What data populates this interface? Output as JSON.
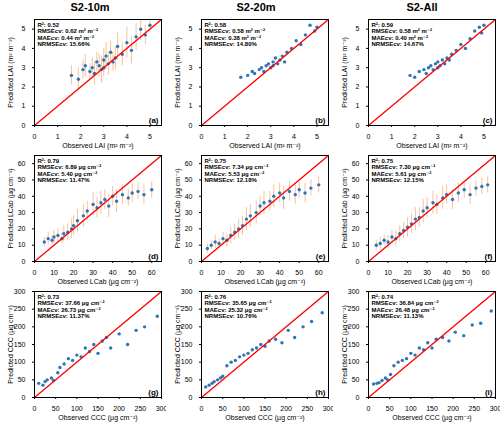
{
  "column_titles": [
    "S2-10m",
    "S2-20m",
    "S2-All"
  ],
  "chart_data": [
    {
      "type": "scatter",
      "title": "(a)",
      "annotations": [
        "R²: 0.52",
        "RMSEcv: 0.62 m² m⁻²",
        "MAEcv: 0.44 m² m⁻²",
        "NRMSEcv: 15.66%"
      ],
      "x_label": "Observed LAI (m² m⁻²)",
      "y_label": "Predicted LAI (m² m⁻²)",
      "xlim": [
        0,
        5.5
      ],
      "ylim": [
        0,
        5.5
      ],
      "xticks": [
        0,
        1,
        2,
        3,
        4,
        5
      ],
      "yticks": [
        0,
        1,
        2,
        3,
        4,
        5
      ],
      "series": [
        {
          "type": "scatter",
          "color": "#2e75b6",
          "error_color": "#f4b183",
          "x": [
            1.6,
            1.9,
            2.1,
            2.2,
            2.4,
            2.5,
            2.6,
            2.7,
            2.8,
            2.9,
            3.0,
            3.0,
            3.1,
            3.2,
            3.3,
            3.4,
            3.5,
            3.6,
            3.8,
            4.0,
            4.2,
            4.4,
            4.6,
            4.8,
            5.0
          ],
          "values": [
            2.6,
            2.4,
            2.9,
            3.1,
            2.8,
            3.0,
            2.7,
            3.3,
            3.1,
            2.9,
            3.4,
            3.0,
            3.6,
            3.2,
            3.8,
            3.3,
            3.5,
            4.1,
            3.7,
            4.3,
            3.9,
            4.6,
            5.0,
            4.7,
            5.2
          ],
          "errors": [
            0.5,
            0.6,
            0.5,
            0.6,
            0.4,
            0.5,
            0.6,
            0.5,
            0.6,
            0.7,
            0.6,
            0.5,
            0.7,
            0.6,
            0.6,
            0.5,
            0.6,
            0.7,
            0.6,
            0.8,
            0.7,
            0.7,
            0.6,
            0.5,
            0.4
          ]
        },
        {
          "type": "line",
          "color": "#ff0000",
          "x": [
            0,
            5.5
          ],
          "values": [
            0,
            5.5
          ]
        }
      ]
    },
    {
      "type": "scatter",
      "title": "(b)",
      "annotations": [
        "R²: 0.58",
        "RMSEcv: 0.58 m² m⁻²",
        "MAEcv: 0.38 m² m⁻²",
        "NRMSEcv: 14.80%"
      ],
      "x_label": "Observed LAI (m² m⁻²)",
      "y_label": "Predicted LAI (m² m⁻²)",
      "xlim": [
        0,
        5.5
      ],
      "ylim": [
        0,
        5.5
      ],
      "xticks": [
        0,
        1,
        2,
        3,
        4,
        5
      ],
      "yticks": [
        0,
        1,
        2,
        3,
        4,
        5
      ],
      "series": [
        {
          "type": "scatter",
          "color": "#2e75b6",
          "x": [
            1.7,
            2.0,
            2.2,
            2.3,
            2.5,
            2.6,
            2.7,
            2.8,
            2.9,
            3.0,
            3.1,
            3.1,
            3.2,
            3.3,
            3.4,
            3.5,
            3.6,
            3.7,
            3.9,
            4.1,
            4.3,
            4.5,
            4.7,
            4.9,
            5.0
          ],
          "values": [
            2.5,
            2.6,
            2.8,
            2.7,
            2.9,
            3.0,
            2.8,
            3.1,
            3.2,
            3.0,
            3.3,
            3.1,
            3.5,
            3.2,
            3.4,
            3.6,
            3.3,
            3.8,
            4.0,
            4.4,
            4.2,
            4.7,
            5.2,
            4.9,
            5.1
          ]
        },
        {
          "type": "line",
          "color": "#ff0000",
          "x": [
            0,
            5.5
          ],
          "values": [
            0,
            5.5
          ]
        }
      ]
    },
    {
      "type": "scatter",
      "title": "(c)",
      "annotations": [
        "R²: 0.59",
        "RMSEcv: 0.58 m² m⁻²",
        "MAEcv: 0.40 m² m⁻²",
        "NRMSEcv: 14.67%"
      ],
      "x_label": "Observed LAI (m² m⁻²)",
      "y_label": "Predicted LAI (m² m⁻²)",
      "xlim": [
        0,
        5.5
      ],
      "ylim": [
        0,
        5.5
      ],
      "xticks": [
        0,
        1,
        2,
        3,
        4,
        5
      ],
      "yticks": [
        0,
        1,
        2,
        3,
        4,
        5
      ],
      "series": [
        {
          "type": "scatter",
          "color": "#2e75b6",
          "x": [
            1.8,
            2.0,
            2.2,
            2.4,
            2.5,
            2.6,
            2.7,
            2.8,
            2.9,
            3.0,
            3.0,
            3.1,
            3.2,
            3.3,
            3.4,
            3.5,
            3.6,
            3.8,
            4.0,
            4.2,
            4.4,
            4.6,
            4.8,
            4.9,
            5.0
          ],
          "values": [
            2.6,
            2.5,
            2.8,
            2.9,
            2.7,
            3.0,
            3.1,
            2.9,
            3.2,
            3.0,
            3.3,
            3.1,
            3.4,
            3.2,
            3.5,
            3.4,
            3.7,
            3.9,
            4.2,
            4.0,
            4.5,
            4.9,
            5.1,
            4.8,
            5.2
          ]
        },
        {
          "type": "line",
          "color": "#ff0000",
          "x": [
            0,
            5.5
          ],
          "values": [
            0,
            5.5
          ]
        }
      ]
    },
    {
      "type": "scatter",
      "title": "(d)",
      "annotations": [
        "R²: 0.79",
        "RMSEcv: 6.89 µg cm⁻²",
        "MAEcv: 5.40 µg cm⁻²",
        "NRMSEcv: 11.47%"
      ],
      "x_label": "Observed LCab (µg cm⁻²)",
      "y_label": "Predicted LCab (µg cm⁻²)",
      "xlim": [
        0,
        65
      ],
      "ylim": [
        0,
        65
      ],
      "xticks": [
        0,
        10,
        20,
        30,
        40,
        50,
        60
      ],
      "yticks": [
        0,
        10,
        20,
        30,
        40,
        50,
        60
      ],
      "series": [
        {
          "type": "scatter",
          "color": "#2e75b6",
          "error_color": "#f4b183",
          "x": [
            5,
            7,
            9,
            10,
            12,
            14,
            15,
            17,
            19,
            20,
            22,
            25,
            27,
            30,
            32,
            34,
            36,
            38,
            40,
            42,
            45,
            48,
            50,
            53,
            56,
            60
          ],
          "values": [
            12,
            14,
            13,
            15,
            16,
            14,
            17,
            18,
            20,
            22,
            25,
            28,
            31,
            35,
            33,
            36,
            38,
            34,
            40,
            37,
            41,
            39,
            42,
            43,
            41,
            44
          ],
          "errors": [
            3,
            4,
            3,
            4,
            4,
            3,
            5,
            5,
            6,
            6,
            7,
            7,
            6,
            7,
            6,
            7,
            6,
            7,
            6,
            7,
            6,
            5,
            6,
            5,
            6,
            5
          ]
        },
        {
          "type": "line",
          "color": "#ff0000",
          "x": [
            0,
            65
          ],
          "values": [
            0,
            65
          ]
        }
      ]
    },
    {
      "type": "scatter",
      "title": "(e)",
      "annotations": [
        "R²: 0.75",
        "RMSEcv: 7.34 µg cm⁻²",
        "MAEcv: 5.53 µg cm⁻²",
        "NRMSEcv: 12.18%"
      ],
      "x_label": "Observed LCab (µg cm⁻²)",
      "y_label": "Predicted LCab (µg cm⁻²)",
      "xlim": [
        0,
        65
      ],
      "ylim": [
        0,
        65
      ],
      "xticks": [
        0,
        10,
        20,
        30,
        40,
        50,
        60
      ],
      "yticks": [
        0,
        10,
        20,
        30,
        40,
        50,
        60
      ],
      "series": [
        {
          "type": "scatter",
          "color": "#2e75b6",
          "error_color": "#f4b183",
          "x": [
            3,
            5,
            7,
            9,
            11,
            13,
            15,
            17,
            19,
            21,
            23,
            25,
            28,
            30,
            32,
            35,
            37,
            40,
            42,
            45,
            48,
            50,
            53,
            56,
            60
          ],
          "values": [
            8,
            10,
            12,
            11,
            14,
            13,
            16,
            18,
            20,
            22,
            26,
            28,
            30,
            34,
            36,
            37,
            40,
            42,
            39,
            43,
            41,
            44,
            42,
            45,
            47
          ],
          "errors": [
            3,
            3,
            4,
            3,
            4,
            4,
            5,
            5,
            6,
            6,
            7,
            7,
            7,
            6,
            7,
            6,
            7,
            6,
            7,
            6,
            6,
            5,
            6,
            5,
            5
          ]
        },
        {
          "type": "line",
          "color": "#ff0000",
          "x": [
            0,
            65
          ],
          "values": [
            0,
            65
          ]
        }
      ]
    },
    {
      "type": "scatter",
      "title": "(f)",
      "annotations": [
        "R²: 0.75",
        "RMSEcv: 7.30 µg cm⁻²",
        "MAEcv: 5.61 µg cm⁻²",
        "NRMSEcv: 12.15%"
      ],
      "x_label": "Observed LCab (µg cm⁻²)",
      "y_label": "Predicted LCab (µg cm⁻²)",
      "xlim": [
        0,
        65
      ],
      "ylim": [
        0,
        65
      ],
      "xticks": [
        0,
        10,
        20,
        30,
        40,
        50,
        60
      ],
      "yticks": [
        0,
        10,
        20,
        30,
        40,
        50,
        60
      ],
      "series": [
        {
          "type": "scatter",
          "color": "#2e75b6",
          "error_color": "#f4b183",
          "x": [
            4,
            6,
            8,
            10,
            12,
            14,
            16,
            18,
            20,
            22,
            24,
            26,
            28,
            30,
            33,
            35,
            38,
            40,
            43,
            46,
            49,
            52,
            55,
            58,
            61
          ],
          "values": [
            10,
            11,
            13,
            12,
            15,
            14,
            17,
            19,
            21,
            23,
            26,
            27,
            31,
            33,
            36,
            35,
            39,
            41,
            38,
            42,
            44,
            41,
            45,
            46,
            47
          ],
          "errors": [
            3,
            4,
            3,
            4,
            4,
            5,
            5,
            5,
            6,
            6,
            7,
            6,
            7,
            6,
            7,
            6,
            7,
            6,
            6,
            6,
            5,
            6,
            5,
            5,
            5
          ]
        },
        {
          "type": "line",
          "color": "#ff0000",
          "x": [
            0,
            65
          ],
          "values": [
            0,
            65
          ]
        }
      ]
    },
    {
      "type": "scatter",
      "title": "(g)",
      "annotations": [
        "R²: 0.73",
        "RMSEcv: 37.66 µg cm⁻²",
        "MAEcv: 26.73 µg cm⁻²",
        "NRMSEcv: 11.37%"
      ],
      "x_label": "Observed CCC (µg cm⁻²)",
      "y_label": "Predicted CCC (µg cm⁻²)",
      "xlim": [
        0,
        300
      ],
      "ylim": [
        0,
        300
      ],
      "xticks": [
        0,
        50,
        100,
        150,
        200,
        250,
        300
      ],
      "yticks": [
        0,
        50,
        100,
        150,
        200,
        250,
        300
      ],
      "series": [
        {
          "type": "scatter",
          "color": "#2e75b6",
          "x": [
            10,
            20,
            25,
            30,
            40,
            45,
            55,
            60,
            70,
            80,
            90,
            100,
            110,
            120,
            130,
            140,
            150,
            160,
            170,
            180,
            200,
            220,
            240,
            260,
            290
          ],
          "values": [
            40,
            35,
            45,
            50,
            55,
            48,
            70,
            85,
            95,
            110,
            105,
            120,
            115,
            140,
            130,
            150,
            125,
            160,
            170,
            140,
            180,
            150,
            190,
            200,
            230
          ]
        },
        {
          "type": "line",
          "color": "#ff0000",
          "x": [
            0,
            300
          ],
          "values": [
            0,
            300
          ]
        }
      ]
    },
    {
      "type": "scatter",
      "title": "(h)",
      "annotations": [
        "R²: 0.76",
        "RMSEcv: 35.65 µg cm⁻²",
        "MAEcv: 25.32 µg cm⁻²",
        "NRMSEcv: 10.76%"
      ],
      "x_label": "Observed CCC (µg cm⁻²)",
      "y_label": "Predicted CCC (µg cm⁻²)",
      "xlim": [
        0,
        300
      ],
      "ylim": [
        0,
        300
      ],
      "xticks": [
        0,
        50,
        100,
        150,
        200,
        250,
        300
      ],
      "yticks": [
        0,
        50,
        100,
        150,
        200,
        250,
        300
      ],
      "series": [
        {
          "type": "scatter",
          "color": "#2e75b6",
          "x": [
            10,
            18,
            25,
            30,
            38,
            45,
            50,
            60,
            70,
            80,
            90,
            100,
            110,
            120,
            130,
            140,
            150,
            160,
            175,
            190,
            205,
            220,
            240,
            260,
            285
          ],
          "values": [
            30,
            35,
            40,
            45,
            50,
            55,
            60,
            90,
            100,
            105,
            115,
            120,
            125,
            135,
            140,
            150,
            145,
            160,
            165,
            155,
            190,
            170,
            200,
            215,
            240
          ]
        },
        {
          "type": "line",
          "color": "#ff0000",
          "x": [
            0,
            300
          ],
          "values": [
            0,
            300
          ]
        }
      ]
    },
    {
      "type": "scatter",
      "title": "(i)",
      "annotations": [
        "R²: 0.74",
        "RMSEcv: 36.84 µg cm⁻²",
        "MAEcv: 26.48 µg cm⁻²",
        "NRMSEcv: 11.13%"
      ],
      "x_label": "Observed CCC (µg cm⁻²)",
      "y_label": "Predicted CCC (µg cm⁻²)",
      "xlim": [
        0,
        300
      ],
      "ylim": [
        0,
        300
      ],
      "xticks": [
        0,
        50,
        100,
        150,
        200,
        250,
        300
      ],
      "yticks": [
        0,
        50,
        100,
        150,
        200,
        250,
        300
      ],
      "series": [
        {
          "type": "scatter",
          "color": "#2e75b6",
          "x": [
            12,
            20,
            25,
            32,
            40,
            45,
            52,
            60,
            70,
            80,
            90,
            100,
            110,
            120,
            130,
            140,
            150,
            160,
            175,
            190,
            205,
            225,
            245,
            265,
            290
          ],
          "values": [
            38,
            40,
            42,
            48,
            55,
            50,
            65,
            90,
            100,
            105,
            110,
            125,
            120,
            140,
            135,
            155,
            140,
            165,
            170,
            160,
            185,
            175,
            205,
            210,
            245
          ]
        },
        {
          "type": "line",
          "color": "#ff0000",
          "x": [
            0,
            300
          ],
          "values": [
            0,
            300
          ]
        }
      ]
    }
  ]
}
